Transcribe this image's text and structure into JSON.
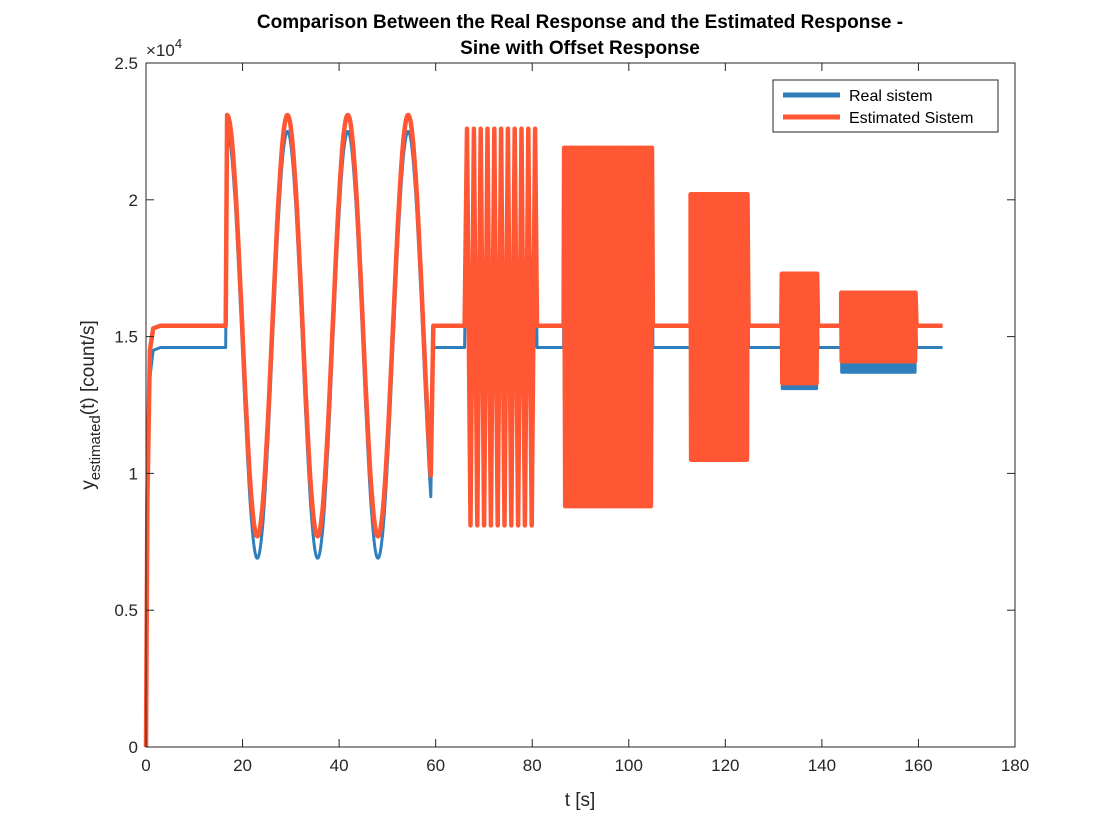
{
  "chart_data": {
    "type": "line",
    "title": [
      "Comparison Between the Real Response and the Estimated Response -",
      "Sine with Offset Response"
    ],
    "xlabel": "t [s]",
    "ylabel_main": "y",
    "ylabel_sub": "estimated",
    "ylabel_rest": "(t) [count/s]",
    "y_exponent_base": "×10",
    "y_exponent_power": "4",
    "xlim": [
      0,
      180
    ],
    "ylim": [
      0,
      2.5
    ],
    "y_scale_multiplier": 10000,
    "xticks": [
      0,
      20,
      40,
      60,
      80,
      100,
      120,
      140,
      160,
      180
    ],
    "yticks": [
      0,
      0.5,
      1,
      1.5,
      2,
      2.5
    ],
    "xtick_labels": [
      "0",
      "20",
      "40",
      "60",
      "80",
      "100",
      "120",
      "140",
      "160",
      "180"
    ],
    "ytick_labels": [
      "0",
      "0.5",
      "1",
      "1.5",
      "2",
      "2.5"
    ],
    "grid": false,
    "legend_position": "top-right",
    "colors": {
      "real": "#2f7fbd",
      "estimated": "#ff5733",
      "axes": "#262626"
    },
    "series": [
      {
        "name": "Real sistem",
        "segments": [
          {
            "kind": "step",
            "t": [
              0,
              0.3,
              0.8,
              1.5,
              3,
              16.5
            ],
            "y": [
              0,
              0.9,
              1.35,
              1.45,
              1.46,
              1.46
            ]
          },
          {
            "kind": "sine",
            "t0": 16.8,
            "t1": 59.0,
            "offset": 1.47,
            "amp": 0.78,
            "period": 12.5,
            "phase_start": "peak"
          },
          {
            "kind": "flat",
            "t0": 59.5,
            "t1": 66.0,
            "y": 1.46
          },
          {
            "kind": "burst",
            "t0": 66.5,
            "t1": 80.6,
            "lo": 0.81,
            "hi": 2.26,
            "cycles": 10
          },
          {
            "kind": "flat",
            "t0": 81.0,
            "t1": 86.5,
            "y": 1.46
          },
          {
            "kind": "burst",
            "t0": 86.6,
            "t1": 104.8,
            "lo": 0.88,
            "hi": 2.19,
            "cycles": 40
          },
          {
            "kind": "flat",
            "t0": 105.0,
            "t1": 112.8,
            "y": 1.46
          },
          {
            "kind": "burst",
            "t0": 112.8,
            "t1": 124.6,
            "lo": 1.05,
            "hi": 2.02,
            "cycles": 55
          },
          {
            "kind": "flat",
            "t0": 124.8,
            "t1": 131.6,
            "y": 1.46
          },
          {
            "kind": "burst",
            "t0": 131.7,
            "t1": 139.0,
            "lo": 1.31,
            "hi": 1.73,
            "cycles": 40
          },
          {
            "kind": "flat",
            "t0": 139.2,
            "t1": 144.0,
            "y": 1.46
          },
          {
            "kind": "burst",
            "t0": 144.0,
            "t1": 159.4,
            "lo": 1.37,
            "hi": 1.66,
            "cycles": 80
          },
          {
            "kind": "flat",
            "t0": 159.6,
            "t1": 165.0,
            "y": 1.46
          }
        ]
      },
      {
        "name": "Estimated Sistem",
        "segments": [
          {
            "kind": "step",
            "t": [
              0,
              0.3,
              0.8,
              1.5,
              3,
              16.5
            ],
            "y": [
              0,
              0.9,
              1.45,
              1.53,
              1.54,
              1.54
            ]
          },
          {
            "kind": "sine",
            "t0": 16.8,
            "t1": 59.0,
            "offset": 1.54,
            "amp": 0.77,
            "period": 12.5,
            "phase_start": "peak"
          },
          {
            "kind": "flat",
            "t0": 59.5,
            "t1": 66.0,
            "y": 1.54
          },
          {
            "kind": "burst",
            "t0": 66.5,
            "t1": 80.6,
            "lo": 0.81,
            "hi": 2.26,
            "cycles": 10
          },
          {
            "kind": "flat",
            "t0": 81.0,
            "t1": 86.5,
            "y": 1.54
          },
          {
            "kind": "burst",
            "t0": 86.6,
            "t1": 104.8,
            "lo": 0.88,
            "hi": 2.19,
            "cycles": 40
          },
          {
            "kind": "flat",
            "t0": 105.0,
            "t1": 112.8,
            "y": 1.54
          },
          {
            "kind": "burst",
            "t0": 112.8,
            "t1": 124.6,
            "lo": 1.05,
            "hi": 2.02,
            "cycles": 55
          },
          {
            "kind": "flat",
            "t0": 124.8,
            "t1": 131.6,
            "y": 1.54
          },
          {
            "kind": "burst",
            "t0": 131.7,
            "t1": 139.0,
            "lo": 1.33,
            "hi": 1.73,
            "cycles": 40
          },
          {
            "kind": "flat",
            "t0": 139.2,
            "t1": 144.0,
            "y": 1.54
          },
          {
            "kind": "burst",
            "t0": 144.0,
            "t1": 159.4,
            "lo": 1.41,
            "hi": 1.66,
            "cycles": 80
          },
          {
            "kind": "flat",
            "t0": 159.6,
            "t1": 165.0,
            "y": 1.54
          }
        ]
      }
    ]
  }
}
